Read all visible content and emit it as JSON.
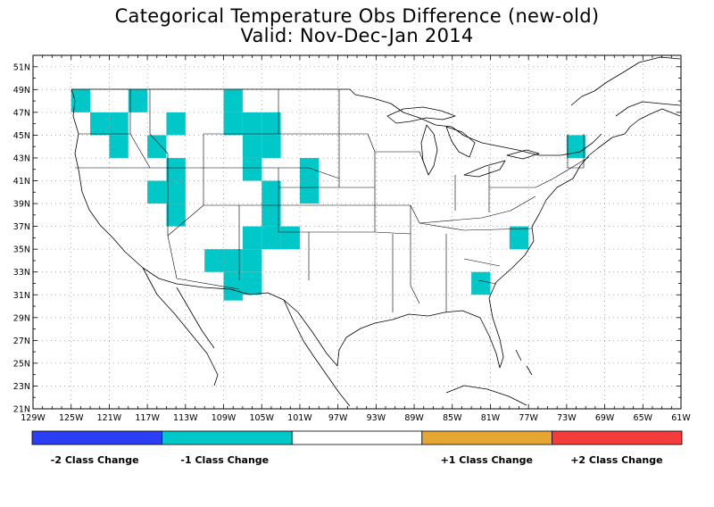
{
  "title": "Categorical Temperature Obs Difference (new-old)",
  "subtitle": "Valid: Nov-Dec-Jan 2014",
  "map": {
    "lon_range": [
      -129,
      -61
    ],
    "lat_range": [
      21,
      52
    ],
    "x_tick_labels": [
      "129W",
      "125W",
      "121W",
      "117W",
      "113W",
      "109W",
      "105W",
      "101W",
      "97W",
      "93W",
      "89W",
      "85W",
      "81W",
      "77W",
      "73W",
      "69W",
      "65W",
      "61W"
    ],
    "y_tick_labels": [
      "21N",
      "23N",
      "25N",
      "27N",
      "29N",
      "31N",
      "33N",
      "35N",
      "37N",
      "39N",
      "41N",
      "43N",
      "45N",
      "47N",
      "49N",
      "51N"
    ],
    "gridlines": "dotted"
  },
  "legend": [
    {
      "label": "-2 Class Change",
      "color": "#2a3ef5"
    },
    {
      "label": "-1 Class Change",
      "color": "#00c8c8"
    },
    {
      "label": "",
      "color": "#ffffff"
    },
    {
      "label": "+1 Class Change",
      "color": "#e6a632"
    },
    {
      "label": "+2 Class Change",
      "color": "#f53c3c"
    }
  ],
  "cells_minus1": [
    {
      "lon": -124,
      "lat": 48
    },
    {
      "lon": -118,
      "lat": 48
    },
    {
      "lon": -122,
      "lat": 46
    },
    {
      "lon": -120,
      "lat": 46
    },
    {
      "lon": -120,
      "lat": 44
    },
    {
      "lon": -114,
      "lat": 46
    },
    {
      "lon": -116,
      "lat": 44
    },
    {
      "lon": -114,
      "lat": 42
    },
    {
      "lon": -114,
      "lat": 40
    },
    {
      "lon": -114,
      "lat": 38
    },
    {
      "lon": -116,
      "lat": 40
    },
    {
      "lon": -108,
      "lat": 48
    },
    {
      "lon": -108,
      "lat": 46
    },
    {
      "lon": -106,
      "lat": 46
    },
    {
      "lon": -104,
      "lat": 46
    },
    {
      "lon": -104,
      "lat": 44
    },
    {
      "lon": -106,
      "lat": 44
    },
    {
      "lon": -106,
      "lat": 42
    },
    {
      "lon": -100,
      "lat": 42
    },
    {
      "lon": -100,
      "lat": 40
    },
    {
      "lon": -104,
      "lat": 40
    },
    {
      "lon": -104,
      "lat": 38
    },
    {
      "lon": -104,
      "lat": 36
    },
    {
      "lon": -102,
      "lat": 36
    },
    {
      "lon": -106,
      "lat": 36
    },
    {
      "lon": -106,
      "lat": 34
    },
    {
      "lon": -108,
      "lat": 34
    },
    {
      "lon": -110,
      "lat": 34
    },
    {
      "lon": -106,
      "lat": 32
    },
    {
      "lon": -108,
      "lat": 32
    },
    {
      "lon": -108,
      "lat": 31.5
    },
    {
      "lon": -78,
      "lat": 36
    },
    {
      "lon": -82,
      "lat": 32
    },
    {
      "lon": -72,
      "lat": 44
    }
  ]
}
